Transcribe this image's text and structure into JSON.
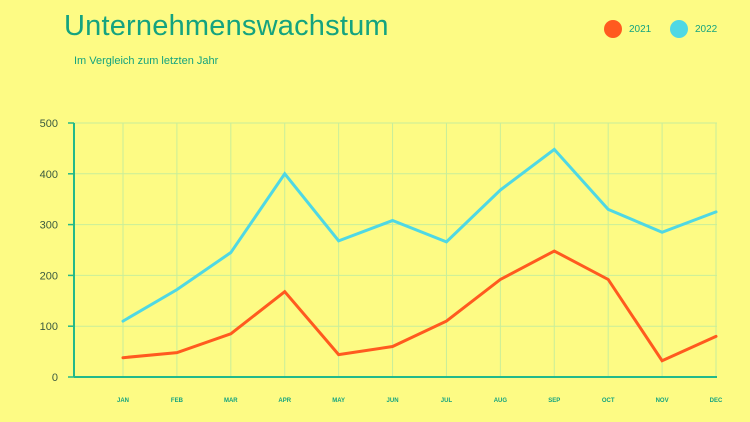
{
  "colors": {
    "background": "#fdfb84",
    "text": "#14a37f",
    "axis": "#22b98a",
    "grid": "#c8ee9a"
  },
  "chart_data": {
    "type": "line",
    "title": "Unternehmenswachstum",
    "subtitle": "Im Vergleich zum letzten Jahr",
    "categories": [
      "JAN",
      "FEB",
      "MAR",
      "APR",
      "MAY",
      "JUN",
      "JUL",
      "AUG",
      "SEP",
      "OCT",
      "NOV",
      "DEC"
    ],
    "ylim": [
      0,
      500
    ],
    "yticks": [
      0,
      100,
      200,
      300,
      400,
      500
    ],
    "grid": true,
    "legend_position": "top-right",
    "series": [
      {
        "name": "2021",
        "color": "#ff5a1f",
        "values": [
          38,
          48,
          85,
          168,
          44,
          60,
          110,
          192,
          248,
          192,
          32,
          80
        ]
      },
      {
        "name": "2022",
        "color": "#4fd8e4",
        "values": [
          110,
          172,
          245,
          400,
          268,
          308,
          266,
          368,
          448,
          330,
          285,
          325
        ]
      }
    ]
  }
}
